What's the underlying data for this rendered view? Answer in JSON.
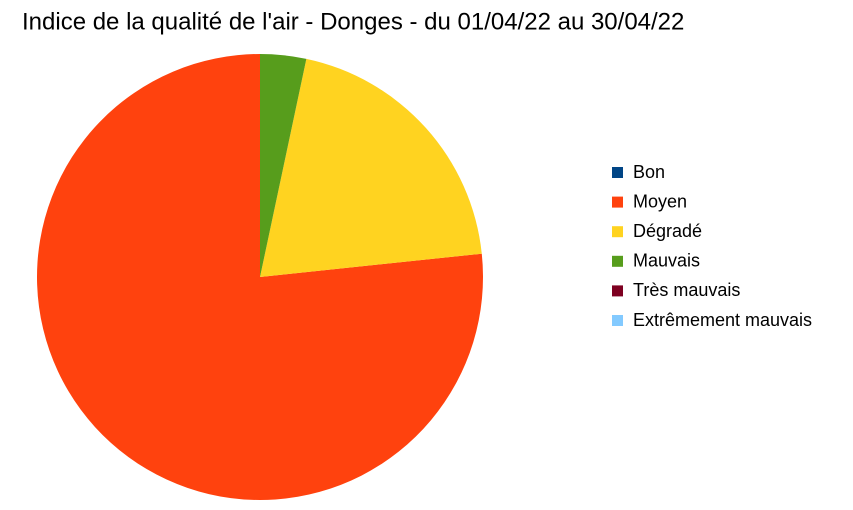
{
  "chart_data": {
    "type": "pie",
    "title": "Indice de la qualité de l'air - Donges - du 01/04/22 au 30/04/22",
    "categories": [
      "Bon",
      "Moyen",
      "Dégradé",
      "Mauvais",
      "Très mauvais",
      "Extrêmement mauvais"
    ],
    "values": [
      0,
      23,
      6,
      1,
      0,
      0
    ],
    "colors": [
      "#004586",
      "#ff420e",
      "#ffd320",
      "#579d1c",
      "#7e0021",
      "#83caff"
    ],
    "legend": "right"
  }
}
